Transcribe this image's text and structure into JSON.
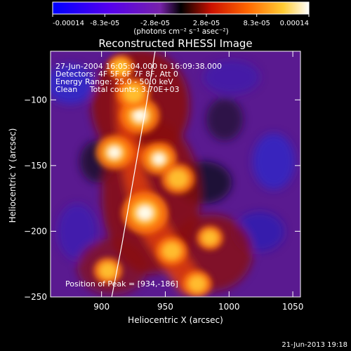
{
  "chart_data": {
    "type": "heatmap",
    "title": "Reconstructed RHESSI Image",
    "xlabel": "Heliocentric X (arcsec)",
    "ylabel": "Heliocentric Y (arcsec)",
    "xlim": [
      860,
      1056
    ],
    "ylim": [
      -250,
      -63
    ],
    "xticks": [
      900,
      950,
      1000,
      1050
    ],
    "yticks": [
      -100,
      -150,
      -200,
      -250
    ],
    "colorbar": {
      "ticks": [
        "-0.00014",
        "-8.3e-05",
        "-2.8e-05",
        "2.8e-05",
        "8.3e-05",
        "0.00014"
      ],
      "tick_values": [
        -0.00014,
        -8.3e-05,
        -2.8e-05,
        2.8e-05,
        8.3e-05,
        0.00014
      ],
      "range": [
        -0.00014,
        0.00014
      ],
      "unit_label": "(photons cm⁻² s⁻¹ asec⁻²)"
    },
    "annotations": [
      "27-Jun-2004 16:05:04.000 to 16:09:38.000",
      "Detectors: 4F 5F 6F 7F 8F, Att 0",
      "Energy Range: 25.0 - 50.0 keV",
      "Clean     Total counts: 3.70E+03"
    ],
    "peak_label": "Position of Peak = [934,-186]",
    "peak": [
      934,
      -186
    ],
    "sources": [
      {
        "x": 934,
        "y": -186,
        "value": 0.00014
      },
      {
        "x": 930,
        "y": -112,
        "value": 0.00011
      },
      {
        "x": 910,
        "y": -140,
        "value": 0.0001
      },
      {
        "x": 945,
        "y": -145,
        "value": 9e-05
      },
      {
        "x": 960,
        "y": -160,
        "value": 8e-05
      },
      {
        "x": 925,
        "y": -95,
        "value": 8e-05
      },
      {
        "x": 955,
        "y": -215,
        "value": 7e-05
      },
      {
        "x": 905,
        "y": -230,
        "value": 6e-05
      },
      {
        "x": 975,
        "y": -240,
        "value": 6e-05
      },
      {
        "x": 985,
        "y": -205,
        "value": 5e-05
      },
      {
        "x": 915,
        "y": -75,
        "value": 5e-05
      }
    ],
    "limb_curve": [
      [
        908,
        -250
      ],
      [
        916,
        -210
      ],
      [
        925,
        -160
      ],
      [
        934,
        -110
      ],
      [
        942,
        -63
      ]
    ]
  },
  "footer_date": "21-Jun-2013 19:18"
}
